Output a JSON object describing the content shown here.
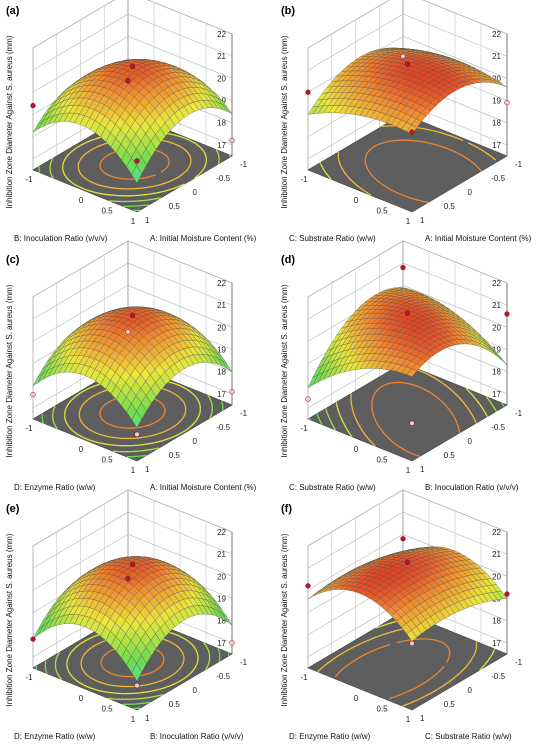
{
  "chart_data": [
    {
      "panel_label": "(a)",
      "type": "surface",
      "zlabel": "Inhibition Zone Diameter Against S. aureus (mm)",
      "zticks": [
        "17",
        "18",
        "19",
        "20",
        "21",
        "22"
      ],
      "zlim": [
        16.5,
        22
      ],
      "xlabel": "B: Inoculation Ratio (v/v/v)",
      "ylabel": "A: Initial Moisture Content (%)",
      "xticks": [
        "-1",
        "0",
        "0.5",
        "1"
      ],
      "yticks": [
        "-1",
        "-0.5",
        "0",
        "0.5",
        "1"
      ],
      "surface": {
        "intercept": 20.8,
        "linear_x": 0.1,
        "linear_y": 0.0,
        "quad_x": -1.4,
        "quad_y": -1.4,
        "interaction": -0.3
      },
      "corner_points": [
        18.0,
        17.2,
        18.8,
        19.4
      ]
    },
    {
      "panel_label": "(b)",
      "type": "surface",
      "zlabel": "Inhibition Zone Diameter Against S. aureus (mm)",
      "zticks": [
        "17",
        "18",
        "19",
        "20",
        "21",
        "22"
      ],
      "zlim": [
        16.5,
        22
      ],
      "xlabel": "C: Substrate Ratio (w/w)",
      "ylabel": "A: Initial Moisture Content (%)",
      "xticks": [
        "-1",
        "0",
        "0.5",
        "1"
      ],
      "yticks": [
        "-1",
        "-0.5",
        "0",
        "0.5",
        "1"
      ],
      "surface": {
        "intercept": 20.9,
        "linear_x": 0.3,
        "linear_y": 0.0,
        "quad_x": -0.4,
        "quad_y": -1.0,
        "interaction": 0.2
      },
      "corner_points": [
        19.1,
        18.9,
        20.1,
        20.0
      ]
    },
    {
      "panel_label": "(c)",
      "type": "surface",
      "zlabel": "Inhibition Zone Diameter Against S. aureus (mm)",
      "zticks": [
        "17",
        "18",
        "19",
        "20",
        "21",
        "22"
      ],
      "zlim": [
        16.5,
        22
      ],
      "xlabel": "D: Enzyme Ratio (w/w)",
      "ylabel": "A: Initial Moisture Content (%)",
      "xticks": [
        "-1",
        "0",
        "0.5",
        "1"
      ],
      "yticks": [
        "-1",
        "-0.5",
        "0",
        "0.5",
        "1"
      ],
      "surface": {
        "intercept": 20.8,
        "linear_x": 0.0,
        "linear_y": 0.0,
        "quad_x": -1.4,
        "quad_y": -1.4,
        "interaction": 0.0
      },
      "corner_points": [
        17.9,
        17.1,
        17.7,
        17.6
      ]
    },
    {
      "panel_label": "(d)",
      "type": "surface",
      "zlabel": "Inhibition Zone Diameter Against S. aureus (mm)",
      "zticks": [
        "17",
        "18",
        "19",
        "20",
        "21",
        "22"
      ],
      "zlim": [
        16.5,
        22
      ],
      "xlabel": "C: Substrate Ratio (w/w)",
      "ylabel": "B: Inoculation Ratio (v/v/v)",
      "xticks": [
        "-1",
        "0",
        "0.5",
        "1"
      ],
      "yticks": [
        "-1",
        "-0.5",
        "0",
        "0.5",
        "1"
      ],
      "surface": {
        "intercept": 20.9,
        "linear_x": 0.2,
        "linear_y": 0.0,
        "quad_x": -0.6,
        "quad_y": -1.2,
        "interaction": 1.0
      },
      "corner_points": [
        20.8,
        20.6,
        18.2,
        17.4
      ]
    },
    {
      "panel_label": "(e)",
      "type": "surface",
      "zlabel": "Inhibition Zone Diameter Against S. aureus (mm)",
      "zticks": [
        "17",
        "18",
        "19",
        "20",
        "21",
        "22"
      ],
      "zlim": [
        16.5,
        22
      ],
      "xlabel": "D: Enzyme Ratio (w/w)",
      "ylabel": "B: Inoculation Ratio (v/v/v)",
      "xticks": [
        "-1",
        "0",
        "0.5",
        "1"
      ],
      "yticks": [
        "-1",
        "-0.5",
        "0",
        "0.5",
        "1"
      ],
      "surface": {
        "intercept": 20.8,
        "linear_x": 0.0,
        "linear_y": 0.0,
        "quad_x": -1.5,
        "quad_y": -1.5,
        "interaction": 0.0
      },
      "corner_points": [
        18.0,
        17.0,
        17.6,
        17.8
      ]
    },
    {
      "panel_label": "(f)",
      "type": "surface",
      "zlabel": "Inhibition Zone Diameter Against S. aureus (mm)",
      "zticks": [
        "17",
        "18",
        "19",
        "20",
        "21",
        "22"
      ],
      "zlim": [
        16.5,
        22
      ],
      "xlabel": "D: Enzyme Ratio (w/w)",
      "ylabel": "C: Substrate Ratio (w/w)",
      "xticks": [
        "-1",
        "0",
        "0.5",
        "1"
      ],
      "yticks": [
        "-1",
        "-0.5",
        "0",
        "0.5",
        "1"
      ],
      "surface": {
        "intercept": 20.9,
        "linear_x": 0.0,
        "linear_y": 0.3,
        "quad_x": -1.2,
        "quad_y": -0.4,
        "interaction": 0.0
      },
      "corner_points": [
        19.8,
        19.2,
        19.5,
        20.2
      ]
    }
  ]
}
